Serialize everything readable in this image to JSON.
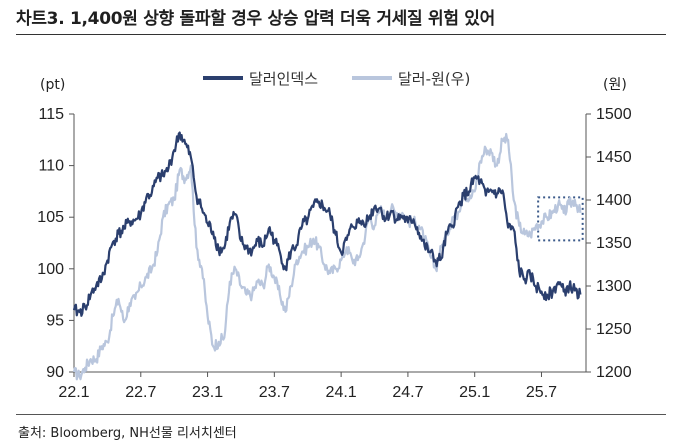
{
  "title": "차트3. 1,400원 상향 돌파할 경우 상승 압력 더욱 거세질 위험 있어",
  "source": "출처: Bloomberg, NH선물 리서치센터",
  "chart_data": {
    "type": "line",
    "left_unit": "(pt)",
    "right_unit": "(원)",
    "x_tick_labels": [
      "22.1",
      "22.7",
      "23.1",
      "23.7",
      "24.1",
      "24.7",
      "25.1",
      "25.7"
    ],
    "x_ticks_month_index": [
      0,
      6,
      12,
      18,
      24,
      30,
      36,
      42
    ],
    "x_range_months": [
      0,
      46
    ],
    "ylim_left": [
      90,
      115
    ],
    "yticks_left": [
      90,
      95,
      100,
      105,
      110,
      115
    ],
    "ylim_right": [
      1200,
      1500
    ],
    "yticks_right": [
      1200,
      1250,
      1300,
      1350,
      1400,
      1450,
      1500
    ],
    "colors": {
      "dxy": "#2b3f6e",
      "usdkrw": "#b9c6dd",
      "box": "#3b5a8a"
    },
    "series": [
      {
        "name": "달러인덱스",
        "axis": "left",
        "x": [
          0,
          0.5,
          1,
          1.5,
          2,
          2.5,
          3,
          3.5,
          4,
          4.5,
          5,
          5.5,
          6,
          6.5,
          7,
          7.5,
          8,
          8.5,
          9,
          9.5,
          10,
          10.5,
          11,
          11.5,
          12,
          12.5,
          13,
          13.5,
          14,
          14.5,
          15,
          15.5,
          16,
          16.5,
          17,
          17.5,
          18,
          18.5,
          19,
          19.5,
          20,
          20.5,
          21,
          21.5,
          22,
          22.5,
          23,
          23.5,
          24,
          24.5,
          25,
          25.5,
          26,
          26.5,
          27,
          27.5,
          28,
          28.5,
          29,
          29.5,
          30,
          30.5,
          31,
          31.5,
          32,
          32.5,
          33,
          33.5,
          34,
          34.5,
          35,
          35.5,
          36,
          36.5,
          37,
          37.5,
          38,
          38.5,
          39,
          39.5,
          40,
          40.5,
          41,
          41.5,
          42,
          42.5,
          43,
          43.5,
          44,
          44.5,
          45,
          45.5
        ],
        "values": [
          96.0,
          95.8,
          96.3,
          97.5,
          98.4,
          99.0,
          100.8,
          102.6,
          103.4,
          103.9,
          104.6,
          104.7,
          105.3,
          106.9,
          107.4,
          108.8,
          109.0,
          109.8,
          111.5,
          113.2,
          112.1,
          110.8,
          107.1,
          105.8,
          104.4,
          103.6,
          101.8,
          102.0,
          104.5,
          105.3,
          102.7,
          102.0,
          101.7,
          102.7,
          102.2,
          103.9,
          102.8,
          101.6,
          100.0,
          101.7,
          102.3,
          104.2,
          104.8,
          106.0,
          106.5,
          105.9,
          105.3,
          103.3,
          101.6,
          102.8,
          104.1,
          104.5,
          104.5,
          104.9,
          106.0,
          105.9,
          104.8,
          105.6,
          104.8,
          105.1,
          104.5,
          104.8,
          103.5,
          102.2,
          101.6,
          100.7,
          101.0,
          103.4,
          104.2,
          106.0,
          107.1,
          107.5,
          108.8,
          108.5,
          107.1,
          107.6,
          107.3,
          107.6,
          104.0,
          103.8,
          99.8,
          99.0,
          99.4,
          98.3,
          97.8,
          97.5,
          97.7,
          98.7,
          97.8,
          98.3,
          97.9,
          97.5
        ]
      },
      {
        "name": "달러-원(우)",
        "axis": "right",
        "x": [
          0,
          0.5,
          1,
          1.5,
          2,
          2.5,
          3,
          3.5,
          4,
          4.5,
          5,
          5.5,
          6,
          6.5,
          7,
          7.5,
          8,
          8.5,
          9,
          9.5,
          10,
          10.5,
          11,
          11.5,
          12,
          12.5,
          13,
          13.5,
          14,
          14.5,
          15,
          15.5,
          16,
          16.5,
          17,
          17.5,
          18,
          18.5,
          19,
          19.5,
          20,
          20.5,
          21,
          21.5,
          22,
          22.5,
          23,
          23.5,
          24,
          24.5,
          25,
          25.5,
          26,
          26.5,
          27,
          27.5,
          28,
          28.5,
          29,
          29.5,
          30,
          30.5,
          31,
          31.5,
          32,
          32.5,
          33,
          33.5,
          34,
          34.5,
          35,
          35.5,
          36,
          36.5,
          37,
          37.5,
          38,
          38.5,
          39,
          39.5,
          40,
          40.5,
          41,
          41.5,
          42,
          42.5,
          43,
          43.5,
          44,
          44.5,
          45,
          45.5
        ],
        "values": [
          1200,
          1195,
          1205,
          1215,
          1215,
          1230,
          1235,
          1265,
          1285,
          1258,
          1280,
          1285,
          1300,
          1310,
          1320,
          1340,
          1380,
          1395,
          1400,
          1435,
          1425,
          1440,
          1345,
          1320,
          1265,
          1230,
          1235,
          1240,
          1305,
          1320,
          1300,
          1290,
          1290,
          1305,
          1300,
          1325,
          1310,
          1290,
          1270,
          1300,
          1330,
          1340,
          1345,
          1355,
          1345,
          1325,
          1315,
          1320,
          1330,
          1345,
          1330,
          1330,
          1350,
          1380,
          1370,
          1390,
          1380,
          1390,
          1385,
          1385,
          1375,
          1375,
          1370,
          1355,
          1335,
          1320,
          1345,
          1360,
          1380,
          1385,
          1410,
          1400,
          1410,
          1445,
          1460,
          1455,
          1440,
          1470,
          1470,
          1400,
          1370,
          1360,
          1360,
          1370,
          1375,
          1380,
          1385,
          1395,
          1385,
          1395,
          1400,
          1385
        ]
      }
    ],
    "highlight_box_note": "dotted rectangle around recent 달러-원 range",
    "highlight_box": {
      "x_from": 41.7,
      "x_to": 45.7,
      "y_from_right": 1353,
      "y_to_right": 1403
    }
  }
}
